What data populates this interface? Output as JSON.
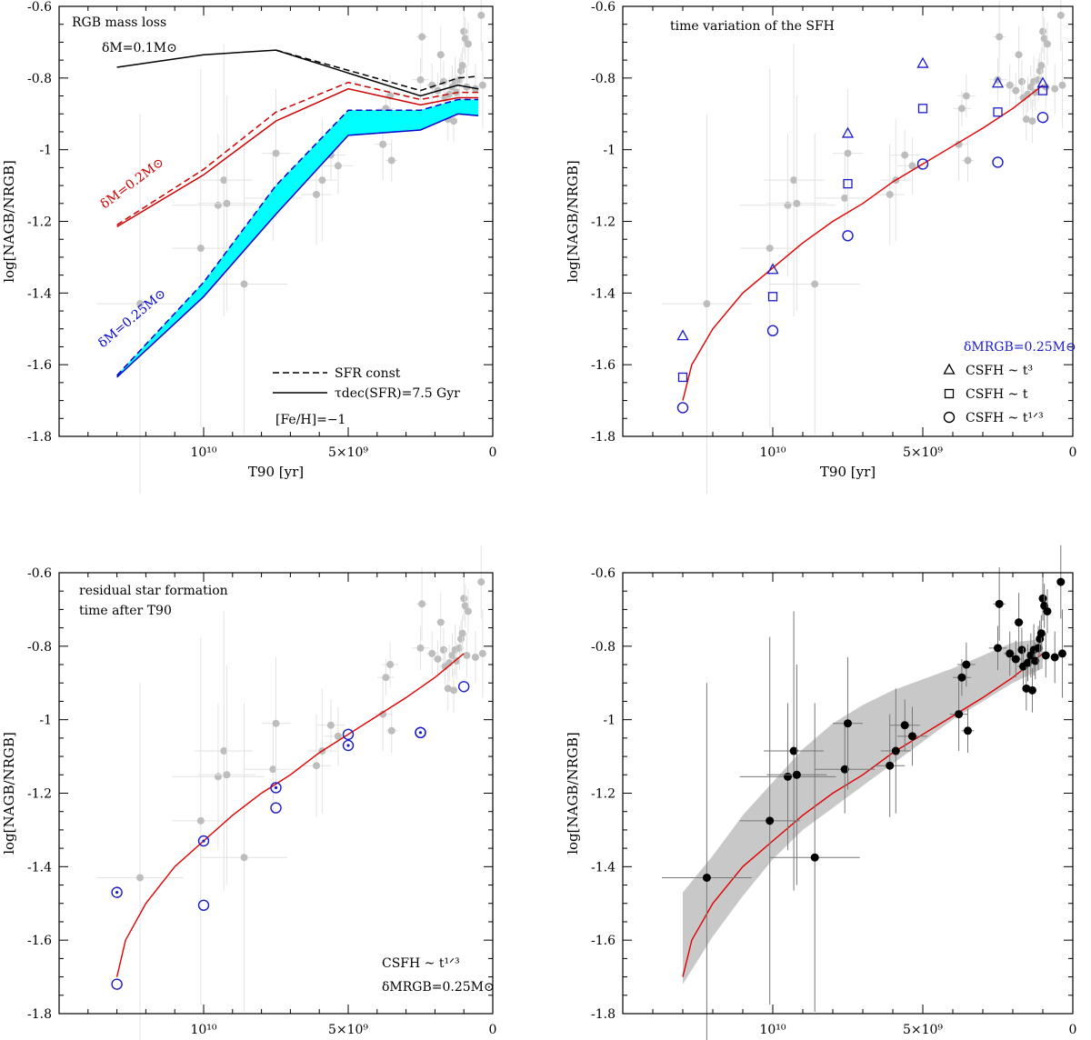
{
  "chart_data": [
    {
      "type": "line",
      "title": "RGB mass loss",
      "xlabel": "T90 [yr]",
      "ylabel": "log[NAGB/NRGB]",
      "xlim": [
        15000000000.0,
        0
      ],
      "ylim": [
        -1.8,
        -0.6
      ],
      "x_ticks": [
        {
          "value": 10000000000.0,
          "label": "10¹⁰"
        },
        {
          "value": 5000000000.0,
          "label": "5×10⁹"
        },
        {
          "value": 0,
          "label": "0"
        }
      ],
      "y_ticks": [
        {
          "value": -0.6,
          "label": "-0.6"
        },
        {
          "value": -0.8,
          "label": "-0.8"
        },
        {
          "value": -1.0,
          "label": "-1"
        },
        {
          "value": -1.2,
          "label": "-1.2"
        },
        {
          "value": -1.4,
          "label": "-1.4"
        },
        {
          "value": -1.6,
          "label": "-1.6"
        },
        {
          "value": -1.8,
          "label": "-1.8"
        }
      ],
      "curve_labels": [
        {
          "text": "δM=0.1M⊙",
          "color": "#000000"
        },
        {
          "text": "δM=0.2M⊙",
          "color": "#cc0000"
        },
        {
          "text": "δM=0.25M⊙",
          "color": "#0000cc"
        }
      ],
      "series": [
        {
          "mass": 0.1,
          "style": "solid",
          "color": "#000000",
          "x": [
            13000000000.0,
            10000000000.0,
            7500000000.0,
            2500000000.0,
            1200000000.0,
            500000000.0
          ],
          "y": [
            -0.77,
            -0.735,
            -0.722,
            -0.85,
            -0.82,
            -0.83
          ]
        },
        {
          "mass": 0.1,
          "style": "dashed",
          "color": "#000000",
          "x": [
            7500000000.0,
            2500000000.0,
            1200000000.0,
            500000000.0
          ],
          "y": [
            -0.722,
            -0.835,
            -0.8,
            -0.795
          ]
        },
        {
          "mass": 0.2,
          "style": "solid",
          "color": "#cc0000",
          "x": [
            13000000000.0,
            10000000000.0,
            7500000000.0,
            5000000000.0,
            2500000000.0,
            1200000000.0,
            500000000.0
          ],
          "y": [
            -1.215,
            -1.07,
            -0.92,
            -0.83,
            -0.875,
            -0.855,
            -0.855
          ]
        },
        {
          "mass": 0.2,
          "style": "dashed",
          "color": "#cc0000",
          "x": [
            13000000000.0,
            10000000000.0,
            7500000000.0,
            5000000000.0,
            2500000000.0,
            1200000000.0,
            500000000.0
          ],
          "y": [
            -1.21,
            -1.055,
            -0.895,
            -0.812,
            -0.86,
            -0.84,
            -0.84
          ]
        },
        {
          "mass": 0.25,
          "style": "solid",
          "color": "#0000cc",
          "x": [
            13000000000.0,
            10000000000.0,
            7500000000.0,
            5000000000.0,
            2500000000.0,
            1200000000.0,
            500000000.0
          ],
          "y": [
            -1.635,
            -1.41,
            -1.18,
            -0.96,
            -0.945,
            -0.9,
            -0.905
          ]
        },
        {
          "mass": 0.25,
          "style": "dashed",
          "color": "#0000cc",
          "x": [
            13000000000.0,
            10000000000.0,
            7500000000.0,
            5000000000.0,
            2500000000.0,
            1200000000.0,
            500000000.0
          ],
          "y": [
            -1.63,
            -1.37,
            -1.1,
            -0.89,
            -0.89,
            -0.86,
            -0.86
          ]
        }
      ],
      "legend": {
        "position": "bottom-right",
        "entries": [
          {
            "style": "dashed",
            "label": "SFR const"
          },
          {
            "style": "solid",
            "label": "τdec(SFR)=7.5 Gyr"
          }
        ],
        "note": "[Fe/H]=−1"
      }
    },
    {
      "type": "scatter",
      "title": "time variation of the SFH",
      "xlabel": "T90 [yr]",
      "ylabel": "log[NAGB/NRGB]",
      "xlim": [
        15000000000.0,
        0
      ],
      "ylim": [
        -1.8,
        -0.6
      ],
      "x_ticks": [
        {
          "value": 10000000000.0,
          "label": "10¹⁰"
        },
        {
          "value": 5000000000.0,
          "label": "5×10⁹"
        },
        {
          "value": 0,
          "label": "0"
        }
      ],
      "y_ticks": [
        {
          "value": -0.6,
          "label": "-0.6"
        },
        {
          "value": -0.8,
          "label": "-0.8"
        },
        {
          "value": -1.0,
          "label": "-1"
        },
        {
          "value": -1.2,
          "label": "-1.2"
        },
        {
          "value": -1.4,
          "label": "-1.4"
        },
        {
          "value": -1.6,
          "label": "-1.6"
        },
        {
          "value": -1.8,
          "label": "-1.8"
        }
      ],
      "red_curve": {
        "color": "#e00000",
        "x": [
          13000000000.0,
          12700000000.0,
          12000000000.0,
          11000000000.0,
          10000000000.0,
          9000000000.0,
          8000000000.0,
          7000000000.0,
          6000000000.0,
          5000000000.0,
          4000000000.0,
          3000000000.0,
          2000000000.0,
          1000000000.0
        ],
        "y": [
          -1.7,
          -1.6,
          -1.5,
          -1.4,
          -1.33,
          -1.26,
          -1.2,
          -1.15,
          -1.09,
          -1.04,
          -0.99,
          -0.94,
          -0.885,
          -0.82
        ]
      },
      "markers": [
        {
          "shape": "triangle",
          "label": "CSFH ~ t³",
          "x": [
            13000000000.0,
            10000000000.0,
            7500000000.0,
            5000000000.0,
            2500000000.0,
            1000000000.0
          ],
          "y": [
            -1.52,
            -1.335,
            -0.955,
            -0.76,
            -0.815,
            -0.815
          ]
        },
        {
          "shape": "square",
          "label": "CSFH ~ t",
          "x": [
            13000000000.0,
            10000000000.0,
            7500000000.0,
            5000000000.0,
            2500000000.0,
            1000000000.0
          ],
          "y": [
            -1.635,
            -1.41,
            -1.095,
            -0.885,
            -0.895,
            -0.835
          ]
        },
        {
          "shape": "circle",
          "label": "CSFH ~ t¹ᐟ³",
          "x": [
            13000000000.0,
            10000000000.0,
            7500000000.0,
            5000000000.0,
            2500000000.0,
            1000000000.0
          ],
          "y": [
            -1.72,
            -1.505,
            -1.24,
            -1.04,
            -1.035,
            -0.91
          ]
        }
      ],
      "legend": {
        "position": "bottom-right",
        "header": "δMRGB=0.25M⊙"
      }
    },
    {
      "type": "scatter",
      "title": "residual star formation time after T90",
      "xlabel": "T90 [yr]",
      "ylabel": "log[NAGB/NRGB]",
      "xlim": [
        15000000000.0,
        0
      ],
      "ylim": [
        -1.8,
        -0.6
      ],
      "x_ticks": [
        {
          "value": 10000000000.0,
          "label": "10¹⁰"
        },
        {
          "value": 5000000000.0,
          "label": "5×10⁹"
        },
        {
          "value": 0,
          "label": "0"
        }
      ],
      "y_ticks": [
        {
          "value": -0.6,
          "label": "-0.6"
        },
        {
          "value": -0.8,
          "label": "-0.8"
        },
        {
          "value": -1.0,
          "label": "-1"
        },
        {
          "value": -1.2,
          "label": "-1.2"
        },
        {
          "value": -1.4,
          "label": "-1.4"
        },
        {
          "value": -1.6,
          "label": "-1.6"
        },
        {
          "value": -1.8,
          "label": "-1.8"
        }
      ],
      "red_curve": {
        "color": "#e00000",
        "x": [
          13000000000.0,
          12700000000.0,
          12000000000.0,
          11000000000.0,
          10000000000.0,
          9000000000.0,
          8000000000.0,
          7000000000.0,
          6000000000.0,
          5000000000.0,
          4000000000.0,
          3000000000.0,
          2000000000.0,
          1000000000.0
        ],
        "y": [
          -1.7,
          -1.6,
          -1.5,
          -1.4,
          -1.33,
          -1.26,
          -1.2,
          -1.15,
          -1.09,
          -1.04,
          -0.99,
          -0.94,
          -0.885,
          -0.82
        ]
      },
      "markers": [
        {
          "shape": "circle",
          "x": [
            13000000000.0,
            10000000000.0,
            7500000000.0,
            5000000000.0,
            2500000000.0,
            1000000000.0
          ],
          "y": [
            -1.72,
            -1.505,
            -1.24,
            -1.04,
            -1.035,
            -0.91
          ]
        },
        {
          "shape": "dotted-circle",
          "x": [
            13000000000.0,
            10000000000.0,
            7500000000.0,
            5000000000.0,
            2500000000.0
          ],
          "y": [
            -1.47,
            -1.33,
            -1.185,
            -1.07,
            -1.035
          ]
        }
      ],
      "legend": {
        "position": "bottom-right",
        "lines": [
          "CSFH ~ t¹ᐟ³",
          "δMRGB=0.25M⊙"
        ]
      }
    },
    {
      "type": "scatter",
      "xlabel": "T90 [yr]",
      "ylabel": "log[NAGB/NRGB]",
      "xlim": [
        15000000000.0,
        0
      ],
      "ylim": [
        -1.8,
        -0.6
      ],
      "x_ticks": [
        {
          "value": 10000000000.0,
          "label": "10¹⁰"
        },
        {
          "value": 5000000000.0,
          "label": "5×10⁹"
        },
        {
          "value": 0,
          "label": "0"
        }
      ],
      "y_ticks": [
        {
          "value": -0.6,
          "label": "-0.6"
        },
        {
          "value": -0.8,
          "label": "-0.8"
        },
        {
          "value": -1.0,
          "label": "-1"
        },
        {
          "value": -1.2,
          "label": "-1.2"
        },
        {
          "value": -1.4,
          "label": "-1.4"
        },
        {
          "value": -1.6,
          "label": "-1.6"
        },
        {
          "value": -1.8,
          "label": "-1.8"
        }
      ],
      "red_curve": {
        "color": "#e00000",
        "x": [
          13000000000.0,
          12700000000.0,
          12000000000.0,
          11000000000.0,
          10000000000.0,
          9000000000.0,
          8000000000.0,
          7000000000.0,
          6000000000.0,
          5000000000.0,
          4000000000.0,
          3000000000.0,
          2000000000.0,
          1000000000.0
        ],
        "y": [
          -1.7,
          -1.6,
          -1.5,
          -1.4,
          -1.33,
          -1.26,
          -1.2,
          -1.15,
          -1.09,
          -1.04,
          -0.99,
          -0.94,
          -0.885,
          -0.82
        ]
      },
      "band": {
        "color": "#c8c8c8",
        "x": [
          13000000000.0,
          12000000000.0,
          11000000000.0,
          10000000000.0,
          9000000000.0,
          8000000000.0,
          7000000000.0,
          6000000000.0,
          5000000000.0,
          4000000000.0,
          3000000000.0,
          2000000000.0,
          1000000000.0
        ],
        "upper": [
          -1.47,
          -1.37,
          -1.26,
          -1.17,
          -1.08,
          -1.01,
          -0.96,
          -0.92,
          -0.89,
          -0.86,
          -0.825,
          -0.79,
          -0.78
        ],
        "lower": [
          -1.72,
          -1.59,
          -1.48,
          -1.38,
          -1.3,
          -1.24,
          -1.18,
          -1.12,
          -1.06,
          -1.0,
          -0.95,
          -0.9,
          -0.86
        ]
      },
      "observations": {
        "color_primary": "#000000",
        "color_faded": "#bdbdbd",
        "points": [
          {
            "x": 12200000000.0,
            "y": -1.43,
            "xerr": 1500000000.0,
            "yerr": 0.53
          },
          {
            "x": 10100000000.0,
            "y": -1.275,
            "xerr": 1000000000.0,
            "yerr": 0.5
          },
          {
            "x": 9500000000.0,
            "y": -1.155,
            "xerr": 1600000000.0,
            "yerr": 0.2
          },
          {
            "x": 9300000000.0,
            "y": -1.085,
            "xerr": 1000000000.0,
            "yerr": 0.38
          },
          {
            "x": 9200000000.0,
            "y": -1.15,
            "xerr": 1000000000.0,
            "yerr": 0.3
          },
          {
            "x": 8600000000.0,
            "y": -1.375,
            "xerr": 1500000000.0,
            "yerr": 0.42
          },
          {
            "x": 7600000000.0,
            "y": -1.135,
            "xerr": 1000000000.0,
            "yerr": 0.12
          },
          {
            "x": 7500000000.0,
            "y": -1.01,
            "xerr": 500000000.0,
            "yerr": 0.18
          },
          {
            "x": 6100000000.0,
            "y": -1.125,
            "xerr": 500000000.0,
            "yerr": 0.14
          },
          {
            "x": 5900000000.0,
            "y": -1.085,
            "xerr": 500000000.0,
            "yerr": 0.17
          },
          {
            "x": 5600000000.0,
            "y": -1.015,
            "xerr": 500000000.0,
            "yerr": 0.07
          },
          {
            "x": 5350000000.0,
            "y": -1.045,
            "xerr": 500000000.0,
            "yerr": 0.08
          },
          {
            "x": 3800000000.0,
            "y": -0.985,
            "xerr": 300000000.0,
            "yerr": 0.1
          },
          {
            "x": 3700000000.0,
            "y": -0.885,
            "xerr": 300000000.0,
            "yerr": 0.05
          },
          {
            "x": 3550000000.0,
            "y": -0.85,
            "xerr": 300000000.0,
            "yerr": 0.06
          },
          {
            "x": 3500000000.0,
            "y": -1.03,
            "xerr": 200000000.0,
            "yerr": 0.06
          },
          {
            "x": 2500000000.0,
            "y": -0.805,
            "xerr": 300000000.0,
            "yerr": 0.06
          },
          {
            "x": 2450000000.0,
            "y": -0.685,
            "xerr": 200000000.0,
            "yerr": 0.1
          },
          {
            "x": 2100000000.0,
            "y": -0.82,
            "xerr": 200000000.0,
            "yerr": 0.06
          },
          {
            "x": 1900000000.0,
            "y": -0.835,
            "xerr": 200000000.0,
            "yerr": 0.05
          },
          {
            "x": 1800000000.0,
            "y": -0.735,
            "xerr": 150000000.0,
            "yerr": 0.08
          },
          {
            "x": 1700000000.0,
            "y": -0.81,
            "xerr": 100000000.0,
            "yerr": 0.06
          },
          {
            "x": 1650000000.0,
            "y": -0.855,
            "xerr": 200000000.0,
            "yerr": 0.05
          },
          {
            "x": 1550000000.0,
            "y": -0.915,
            "xerr": 100000000.0,
            "yerr": 0.06
          },
          {
            "x": 1500000000.0,
            "y": -0.845,
            "xerr": 100000000.0,
            "yerr": 0.05
          },
          {
            "x": 1400000000.0,
            "y": -0.825,
            "xerr": 100000000.0,
            "yerr": 0.06
          },
          {
            "x": 1350000000.0,
            "y": -0.92,
            "xerr": 100000000.0,
            "yerr": 0.06
          },
          {
            "x": 1300000000.0,
            "y": -0.81,
            "xerr": 100000000.0,
            "yerr": 0.07
          },
          {
            "x": 1250000000.0,
            "y": -0.84,
            "xerr": 100000000.0,
            "yerr": 0.05
          },
          {
            "x": 1150000000.0,
            "y": -0.805,
            "xerr": 100000000.0,
            "yerr": 0.06
          },
          {
            "x": 1100000000.0,
            "y": -0.78,
            "xerr": 100000000.0,
            "yerr": 0.05
          },
          {
            "x": 1050000000.0,
            "y": -0.765,
            "xerr": 100000000.0,
            "yerr": 0.05
          },
          {
            "x": 1000000000.0,
            "y": -0.67,
            "xerr": 100000000.0,
            "yerr": 0.06
          },
          {
            "x": 950000000.0,
            "y": -0.69,
            "xerr": 100000000.0,
            "yerr": 0.06
          },
          {
            "x": 900000000.0,
            "y": -0.825,
            "xerr": 100000000.0,
            "yerr": 0.06
          },
          {
            "x": 850000000.0,
            "y": -0.705,
            "xerr": 100000000.0,
            "yerr": 0.06
          },
          {
            "x": 600000000.0,
            "y": -0.83,
            "xerr": 100000000.0,
            "yerr": 0.07
          },
          {
            "x": 400000000.0,
            "y": -0.625,
            "xerr": 100000000.0,
            "yerr": 0.1
          },
          {
            "x": 350000000.0,
            "y": -0.82,
            "xerr": 100000000.0,
            "yerr": 0.12
          }
        ]
      }
    }
  ]
}
